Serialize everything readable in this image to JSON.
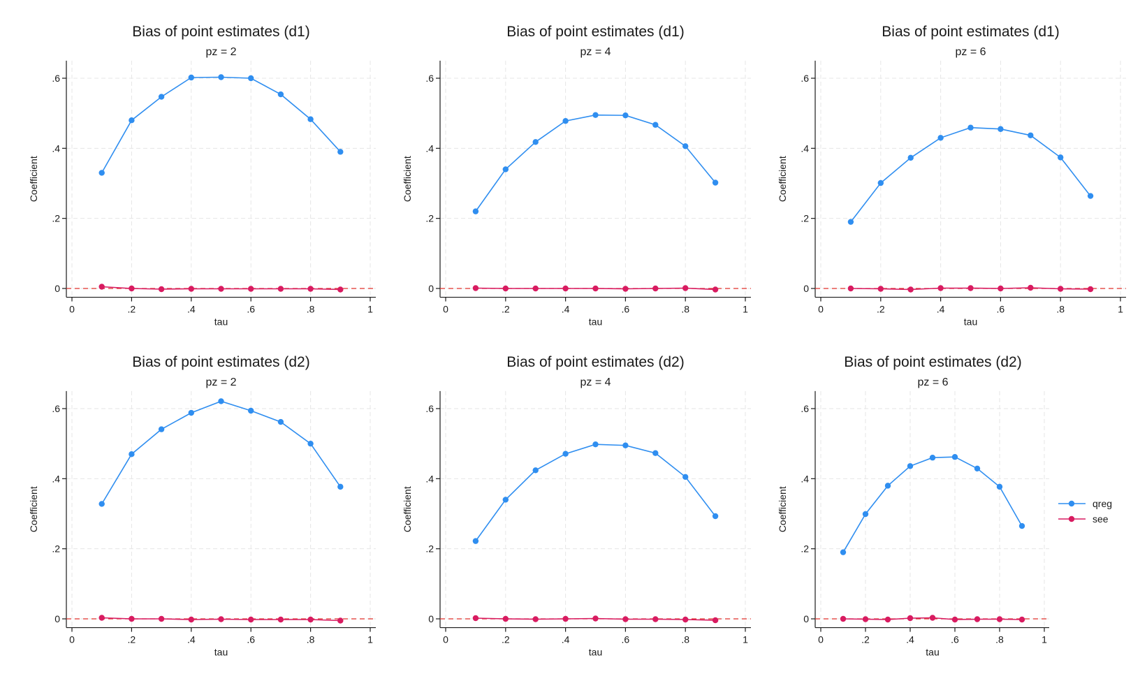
{
  "colors": {
    "qreg": "#2f8ef0",
    "see": "#d81b60",
    "grid": "#e6e6e6",
    "axis": "#1a1a1a",
    "refline": "#e0302a"
  },
  "legend": {
    "placement": "right",
    "items": [
      {
        "name": "qreg",
        "icon": "line-marker"
      },
      {
        "name": "see",
        "icon": "line-marker"
      }
    ]
  },
  "chart_data": [
    {
      "type": "line",
      "title": "Bias of point estimates (d1)",
      "subtitle": "pz = 2",
      "xlabel": "tau",
      "ylabel": "Coefficient",
      "xlim": [
        0,
        1
      ],
      "ylim": [
        -0.025,
        0.65
      ],
      "xticks": [
        0,
        0.2,
        0.4,
        0.6,
        0.8,
        1
      ],
      "xtick_labels": [
        "0",
        ".2",
        ".4",
        ".6",
        ".8",
        "1"
      ],
      "yticks": [
        0,
        0.2,
        0.4,
        0.6
      ],
      "ytick_labels": [
        "0",
        ".2",
        ".4",
        ".6"
      ],
      "grid": true,
      "reference_line_y": 0,
      "x": [
        0.1,
        0.2,
        0.3,
        0.4,
        0.5,
        0.6,
        0.7,
        0.8,
        0.9
      ],
      "series": [
        {
          "name": "qreg",
          "values": [
            0.33,
            0.48,
            0.547,
            0.602,
            0.603,
            0.6,
            0.554,
            0.483,
            0.39
          ]
        },
        {
          "name": "see",
          "values": [
            0.005,
            0.0,
            -0.002,
            -0.001,
            -0.001,
            -0.001,
            -0.001,
            -0.001,
            -0.003
          ]
        }
      ]
    },
    {
      "type": "line",
      "title": "Bias of point estimates (d1)",
      "subtitle": "pz = 4",
      "xlabel": "tau",
      "ylabel": "Coefficient",
      "xlim": [
        0,
        1
      ],
      "ylim": [
        -0.025,
        0.65
      ],
      "xticks": [
        0,
        0.2,
        0.4,
        0.6,
        0.8,
        1
      ],
      "xtick_labels": [
        "0",
        ".2",
        ".4",
        ".6",
        ".8",
        "1"
      ],
      "yticks": [
        0,
        0.2,
        0.4,
        0.6
      ],
      "ytick_labels": [
        "0",
        ".2",
        ".4",
        ".6"
      ],
      "grid": true,
      "reference_line_y": 0,
      "x": [
        0.1,
        0.2,
        0.3,
        0.4,
        0.5,
        0.6,
        0.7,
        0.8,
        0.9
      ],
      "series": [
        {
          "name": "qreg",
          "values": [
            0.22,
            0.34,
            0.418,
            0.478,
            0.495,
            0.494,
            0.467,
            0.406,
            0.302
          ]
        },
        {
          "name": "see",
          "values": [
            0.001,
            0.0,
            0.0,
            0.0,
            0.0,
            -0.001,
            0.0,
            0.001,
            -0.003
          ]
        }
      ]
    },
    {
      "type": "line",
      "title": "Bias of point estimates (d1)",
      "subtitle": "pz = 6",
      "xlabel": "tau",
      "ylabel": "Coefficient",
      "xlim": [
        0,
        1
      ],
      "ylim": [
        -0.025,
        0.65
      ],
      "xticks": [
        0,
        0.2,
        0.4,
        0.6,
        0.8,
        1
      ],
      "xtick_labels": [
        "0",
        ".2",
        ".4",
        ".6",
        ".8",
        "1"
      ],
      "yticks": [
        0,
        0.2,
        0.4,
        0.6
      ],
      "ytick_labels": [
        "0",
        ".2",
        ".4",
        ".6"
      ],
      "grid": true,
      "reference_line_y": 0,
      "x": [
        0.1,
        0.2,
        0.3,
        0.4,
        0.5,
        0.6,
        0.7,
        0.8,
        0.9
      ],
      "series": [
        {
          "name": "qreg",
          "values": [
            0.19,
            0.301,
            0.373,
            0.43,
            0.459,
            0.455,
            0.437,
            0.374,
            0.264
          ]
        },
        {
          "name": "see",
          "values": [
            0.0,
            -0.001,
            -0.003,
            0.001,
            0.001,
            0.0,
            0.002,
            -0.001,
            -0.002
          ]
        }
      ]
    },
    {
      "type": "line",
      "title": "Bias of point estimates (d2)",
      "subtitle": "pz = 2",
      "xlabel": "tau",
      "ylabel": "Coefficient",
      "xlim": [
        0,
        1
      ],
      "ylim": [
        -0.025,
        0.65
      ],
      "xticks": [
        0,
        0.2,
        0.4,
        0.6,
        0.8,
        1
      ],
      "xtick_labels": [
        "0",
        ".2",
        ".4",
        ".6",
        ".8",
        "1"
      ],
      "yticks": [
        0,
        0.2,
        0.4,
        0.6
      ],
      "ytick_labels": [
        "0",
        ".2",
        ".4",
        ".6"
      ],
      "grid": true,
      "reference_line_y": 0,
      "x": [
        0.1,
        0.2,
        0.3,
        0.4,
        0.5,
        0.6,
        0.7,
        0.8,
        0.9
      ],
      "series": [
        {
          "name": "qreg",
          "values": [
            0.328,
            0.47,
            0.541,
            0.588,
            0.621,
            0.594,
            0.562,
            0.5,
            0.377
          ]
        },
        {
          "name": "see",
          "values": [
            0.003,
            0.0,
            0.0,
            -0.002,
            -0.001,
            -0.002,
            -0.002,
            -0.002,
            -0.005
          ]
        }
      ]
    },
    {
      "type": "line",
      "title": "Bias of point estimates (d2)",
      "subtitle": "pz = 4",
      "xlabel": "tau",
      "ylabel": "Coefficient",
      "xlim": [
        0,
        1
      ],
      "ylim": [
        -0.025,
        0.65
      ],
      "xticks": [
        0,
        0.2,
        0.4,
        0.6,
        0.8,
        1
      ],
      "xtick_labels": [
        "0",
        ".2",
        ".4",
        ".6",
        ".8",
        "1"
      ],
      "yticks": [
        0,
        0.2,
        0.4,
        0.6
      ],
      "ytick_labels": [
        "0",
        ".2",
        ".4",
        ".6"
      ],
      "grid": true,
      "reference_line_y": 0,
      "x": [
        0.1,
        0.2,
        0.3,
        0.4,
        0.5,
        0.6,
        0.7,
        0.8,
        0.9
      ],
      "series": [
        {
          "name": "qreg",
          "values": [
            0.222,
            0.34,
            0.424,
            0.471,
            0.498,
            0.495,
            0.473,
            0.405,
            0.293
          ]
        },
        {
          "name": "see",
          "values": [
            0.002,
            0.0,
            -0.001,
            0.0,
            0.001,
            -0.001,
            -0.001,
            -0.002,
            -0.004
          ]
        }
      ]
    },
    {
      "type": "line",
      "title": "Bias of point estimates (d2)",
      "subtitle": "pz = 6",
      "xlabel": "tau",
      "ylabel": "Coefficient",
      "xlim": [
        0,
        1
      ],
      "ylim": [
        -0.025,
        0.65
      ],
      "xticks": [
        0,
        0.2,
        0.4,
        0.6,
        0.8,
        1
      ],
      "xtick_labels": [
        "0",
        ".2",
        ".4",
        ".6",
        ".8",
        "1"
      ],
      "yticks": [
        0,
        0.2,
        0.4,
        0.6
      ],
      "ytick_labels": [
        "0",
        ".2",
        ".4",
        ".6"
      ],
      "grid": true,
      "reference_line_y": 0,
      "x": [
        0.1,
        0.2,
        0.3,
        0.4,
        0.5,
        0.6,
        0.7,
        0.8,
        0.9
      ],
      "series": [
        {
          "name": "qreg",
          "values": [
            0.19,
            0.299,
            0.38,
            0.436,
            0.46,
            0.462,
            0.429,
            0.377,
            0.265
          ]
        },
        {
          "name": "see",
          "values": [
            0.0,
            -0.001,
            -0.002,
            0.002,
            0.003,
            -0.002,
            -0.001,
            -0.001,
            -0.002
          ]
        }
      ]
    }
  ]
}
